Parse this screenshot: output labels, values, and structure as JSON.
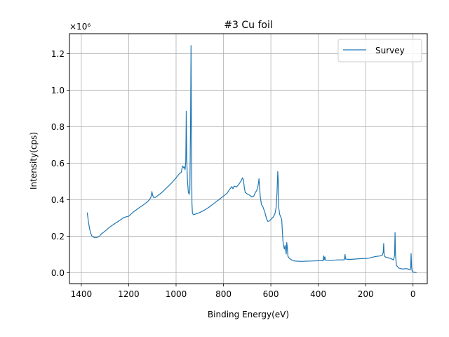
{
  "chart_data": {
    "type": "line",
    "title": "#3 Cu foil",
    "xlabel": "Binding Energy(eV)",
    "ylabel": "Intensity(cps)",
    "y_multiplier_label": "×10⁶",
    "xlim": [
      1450,
      -60
    ],
    "ylim": [
      -0.06,
      1.31
    ],
    "x_reversed": true,
    "grid": true,
    "legend_position": "top-right",
    "x_ticks": [
      1400,
      1200,
      1000,
      800,
      600,
      400,
      200,
      0
    ],
    "y_ticks": [
      0.0,
      0.2,
      0.4,
      0.6,
      0.8,
      1.0,
      1.2
    ],
    "series": [
      {
        "name": "Survey",
        "color": "#1f77b4",
        "points": [
          [
            1375,
            0.33
          ],
          [
            1370,
            0.28
          ],
          [
            1365,
            0.24
          ],
          [
            1360,
            0.215
          ],
          [
            1355,
            0.2
          ],
          [
            1345,
            0.193
          ],
          [
            1335,
            0.192
          ],
          [
            1325,
            0.198
          ],
          [
            1315,
            0.213
          ],
          [
            1300,
            0.228
          ],
          [
            1280,
            0.25
          ],
          [
            1260,
            0.268
          ],
          [
            1240,
            0.285
          ],
          [
            1220,
            0.303
          ],
          [
            1200,
            0.31
          ],
          [
            1180,
            0.333
          ],
          [
            1160,
            0.352
          ],
          [
            1140,
            0.37
          ],
          [
            1120,
            0.39
          ],
          [
            1110,
            0.405
          ],
          [
            1105,
            0.418
          ],
          [
            1102,
            0.445
          ],
          [
            1099,
            0.425
          ],
          [
            1095,
            0.413
          ],
          [
            1088,
            0.412
          ],
          [
            1075,
            0.425
          ],
          [
            1060,
            0.44
          ],
          [
            1040,
            0.465
          ],
          [
            1020,
            0.49
          ],
          [
            1000,
            0.52
          ],
          [
            985,
            0.545
          ],
          [
            978,
            0.55
          ],
          [
            975,
            0.57
          ],
          [
            972,
            0.585
          ],
          [
            968,
            0.575
          ],
          [
            965,
            0.58
          ],
          [
            962,
            0.565
          ],
          [
            959,
            0.61
          ],
          [
            957,
            0.885
          ],
          [
            955,
            0.62
          ],
          [
            952,
            0.505
          ],
          [
            948,
            0.44
          ],
          [
            945,
            0.43
          ],
          [
            942,
            0.45
          ],
          [
            939,
            0.82
          ],
          [
            937,
            1.245
          ],
          [
            935,
            0.75
          ],
          [
            933,
            0.38
          ],
          [
            931,
            0.325
          ],
          [
            926,
            0.318
          ],
          [
            915,
            0.323
          ],
          [
            900,
            0.33
          ],
          [
            880,
            0.343
          ],
          [
            860,
            0.36
          ],
          [
            840,
            0.38
          ],
          [
            820,
            0.4
          ],
          [
            800,
            0.42
          ],
          [
            785,
            0.435
          ],
          [
            775,
            0.455
          ],
          [
            765,
            0.472
          ],
          [
            760,
            0.46
          ],
          [
            755,
            0.475
          ],
          [
            745,
            0.47
          ],
          [
            735,
            0.485
          ],
          [
            725,
            0.505
          ],
          [
            720,
            0.52
          ],
          [
            716,
            0.51
          ],
          [
            712,
            0.465
          ],
          [
            708,
            0.44
          ],
          [
            700,
            0.432
          ],
          [
            690,
            0.425
          ],
          [
            680,
            0.415
          ],
          [
            672,
            0.42
          ],
          [
            665,
            0.44
          ],
          [
            660,
            0.45
          ],
          [
            655,
            0.47
          ],
          [
            652,
            0.495
          ],
          [
            650,
            0.515
          ],
          [
            648,
            0.475
          ],
          [
            645,
            0.42
          ],
          [
            640,
            0.375
          ],
          [
            633,
            0.36
          ],
          [
            625,
            0.33
          ],
          [
            618,
            0.295
          ],
          [
            612,
            0.28
          ],
          [
            605,
            0.285
          ],
          [
            598,
            0.295
          ],
          [
            590,
            0.305
          ],
          [
            583,
            0.322
          ],
          [
            578,
            0.355
          ],
          [
            574,
            0.44
          ],
          [
            571,
            0.555
          ],
          [
            569,
            0.505
          ],
          [
            567,
            0.36
          ],
          [
            563,
            0.32
          ],
          [
            558,
            0.305
          ],
          [
            554,
            0.29
          ],
          [
            552,
            0.24
          ],
          [
            549,
            0.175
          ],
          [
            546,
            0.145
          ],
          [
            543,
            0.13
          ],
          [
            540,
            0.15
          ],
          [
            538,
            0.128
          ],
          [
            535,
            0.102
          ],
          [
            533,
            0.165
          ],
          [
            531,
            0.145
          ],
          [
            528,
            0.09
          ],
          [
            523,
            0.08
          ],
          [
            515,
            0.072
          ],
          [
            505,
            0.065
          ],
          [
            490,
            0.063
          ],
          [
            470,
            0.062
          ],
          [
            450,
            0.063
          ],
          [
            430,
            0.064
          ],
          [
            410,
            0.065
          ],
          [
            390,
            0.066
          ],
          [
            380,
            0.065
          ],
          [
            377,
            0.092
          ],
          [
            375,
            0.07
          ],
          [
            372,
            0.087
          ],
          [
            369,
            0.068
          ],
          [
            360,
            0.068
          ],
          [
            340,
            0.068
          ],
          [
            320,
            0.07
          ],
          [
            300,
            0.07
          ],
          [
            290,
            0.071
          ],
          [
            287,
            0.1
          ],
          [
            285,
            0.075
          ],
          [
            275,
            0.073
          ],
          [
            260,
            0.073
          ],
          [
            240,
            0.075
          ],
          [
            220,
            0.077
          ],
          [
            200,
            0.078
          ],
          [
            185,
            0.08
          ],
          [
            170,
            0.085
          ],
          [
            160,
            0.088
          ],
          [
            150,
            0.09
          ],
          [
            140,
            0.092
          ],
          [
            130,
            0.095
          ],
          [
            126,
            0.11
          ],
          [
            124,
            0.16
          ],
          [
            122,
            0.105
          ],
          [
            120,
            0.09
          ],
          [
            115,
            0.085
          ],
          [
            108,
            0.083
          ],
          [
            100,
            0.08
          ],
          [
            90,
            0.075
          ],
          [
            82,
            0.07
          ],
          [
            78,
            0.095
          ],
          [
            76,
            0.22
          ],
          [
            74,
            0.1
          ],
          [
            70,
            0.04
          ],
          [
            60,
            0.025
          ],
          [
            45,
            0.02
          ],
          [
            30,
            0.022
          ],
          [
            20,
            0.02
          ],
          [
            12,
            0.015
          ],
          [
            10,
            0.03
          ],
          [
            8,
            0.105
          ],
          [
            6,
            0.03
          ],
          [
            4,
            0.01
          ],
          [
            0,
            0.004
          ],
          [
            -10,
            0.002
          ],
          [
            -15,
            0.0
          ]
        ]
      }
    ]
  }
}
